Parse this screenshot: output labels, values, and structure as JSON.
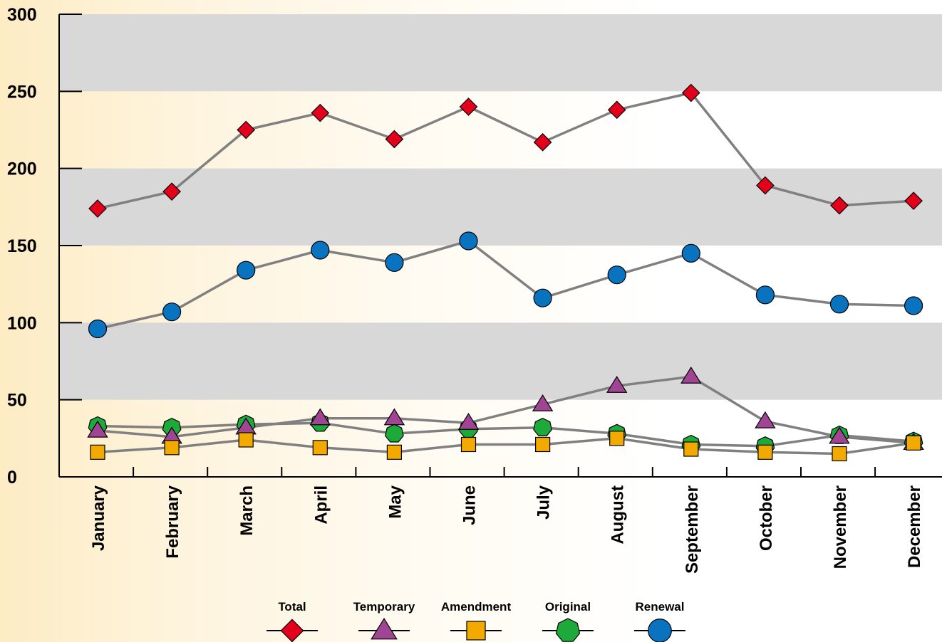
{
  "chart_data": {
    "type": "line",
    "title": "",
    "xlabel": "",
    "ylabel": "",
    "ylim": [
      0,
      300
    ],
    "yticks": [
      0,
      50,
      100,
      150,
      200,
      250,
      300
    ],
    "grid": "alternating horizontal gray bands",
    "legend_placement": "bottom-center",
    "categories": [
      "January",
      "February",
      "March",
      "April",
      "May",
      "June",
      "July",
      "August",
      "September",
      "October",
      "November",
      "December"
    ],
    "series": [
      {
        "name": "Total",
        "marker": "diamond",
        "color": "#e3001b",
        "values": [
          174,
          185,
          225,
          236,
          219,
          240,
          217,
          238,
          249,
          189,
          176,
          179
        ]
      },
      {
        "name": "Temporary",
        "marker": "triangle",
        "color": "#a04593",
        "values": [
          30,
          26,
          32,
          38,
          38,
          35,
          47,
          59,
          65,
          36,
          26,
          22
        ]
      },
      {
        "name": "Amendment",
        "marker": "square",
        "color": "#f2a900",
        "values": [
          16,
          19,
          24,
          19,
          16,
          21,
          21,
          25,
          18,
          16,
          15,
          22
        ]
      },
      {
        "name": "Original",
        "marker": "heptagon",
        "color": "#1daa3a",
        "values": [
          33,
          32,
          34,
          35,
          28,
          31,
          32,
          28,
          21,
          20,
          27,
          23
        ]
      },
      {
        "name": "Renewal",
        "marker": "circle",
        "color": "#0a73bf",
        "values": [
          96,
          107,
          134,
          147,
          139,
          153,
          116,
          131,
          145,
          118,
          112,
          111
        ]
      }
    ],
    "style": {
      "line_color": "#808080",
      "band_color": "#d8d8d8",
      "axis_color": "#000000",
      "marker_stroke": "#000000"
    }
  }
}
